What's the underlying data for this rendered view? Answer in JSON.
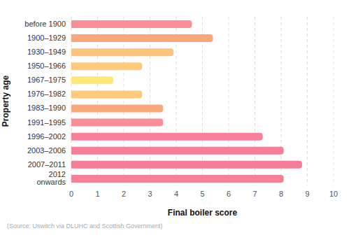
{
  "chart_data": {
    "type": "bar",
    "orientation": "horizontal",
    "x_label": "Final boiler score",
    "y_label": "Property age",
    "source": "(Source: Uswitch via DLUHC and Scottish Government)",
    "categories": [
      "before 1900",
      "1900–1929",
      "1930–1949",
      "1950–1966",
      "1967–1975",
      "1976–1982",
      "1983–1990",
      "1991–1995",
      "1996–2002",
      "2003–2006",
      "2007–2011",
      "2012 onwards"
    ],
    "values": [
      4.6,
      5.4,
      3.9,
      2.7,
      1.6,
      2.7,
      3.5,
      3.5,
      7.3,
      8.1,
      8.8,
      8.1
    ],
    "colors": [
      "#fa8e96",
      "#f9a67c",
      "#fcc47a",
      "#fdca7b",
      "#fde67a",
      "#fdc97b",
      "#f9a77c",
      "#fa8d95",
      "#f8809a",
      "#f77e98",
      "#f77b97",
      "#f77e98"
    ],
    "xlim": [
      0,
      10
    ],
    "xticks": [
      0,
      1,
      2,
      3,
      4,
      5,
      6,
      7,
      8,
      9,
      10
    ],
    "grid": true
  }
}
